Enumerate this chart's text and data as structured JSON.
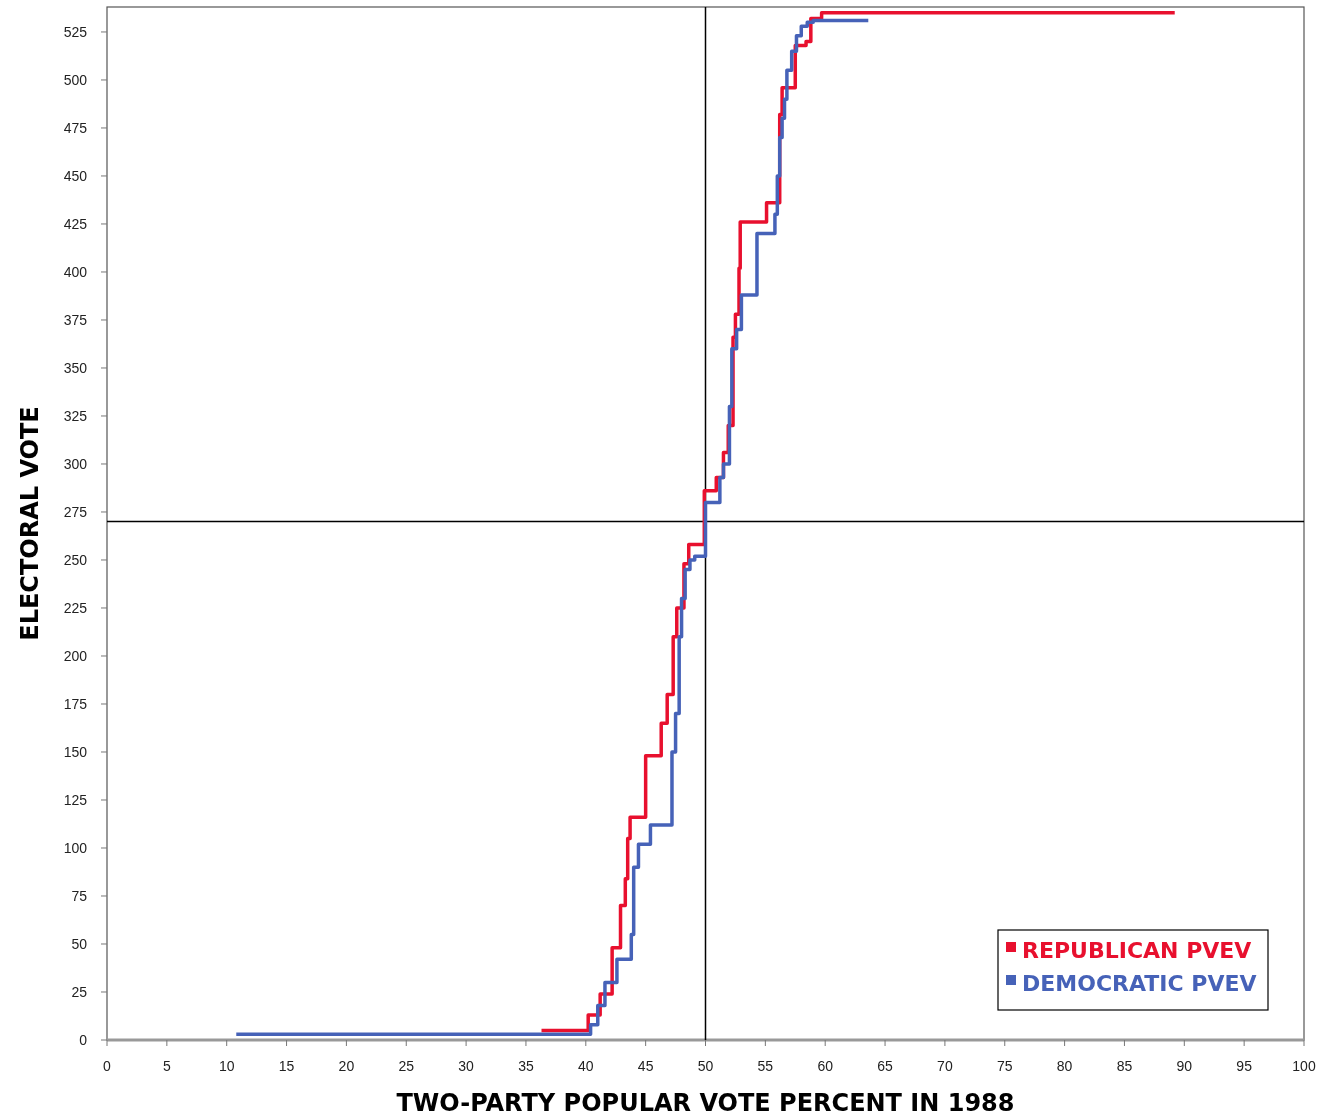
{
  "chart_data": {
    "type": "step",
    "xlabel": "TWO-PARTY POPULAR VOTE PERCENT IN 1988",
    "ylabel": "ELECTORAL VOTE",
    "xlim": [
      0,
      100
    ],
    "ylim": [
      0,
      538
    ],
    "xticks": [
      0,
      5,
      10,
      15,
      20,
      25,
      30,
      35,
      40,
      45,
      50,
      55,
      60,
      65,
      70,
      75,
      80,
      85,
      90,
      95,
      100
    ],
    "yticks": [
      0,
      25,
      50,
      75,
      100,
      125,
      150,
      175,
      200,
      225,
      250,
      275,
      300,
      325,
      350,
      375,
      400,
      425,
      450,
      475,
      500,
      525
    ],
    "grid": false,
    "legend": "bottom right",
    "marker": "none",
    "line_style": "solid",
    "ref_lines": [
      {
        "axis": "x",
        "value": 50,
        "color": "#000000"
      },
      {
        "axis": "y",
        "value": 270,
        "color": "#000000"
      }
    ],
    "series": [
      {
        "name": "REPUBLICAN PVEV",
        "color": "#e8102e",
        "x": [
          36.3,
          40.2,
          41.2,
          42.2,
          42.9,
          43.3,
          43.5,
          43.7,
          45.0,
          46.3,
          46.8,
          47.3,
          47.6,
          48.2,
          48.6,
          49.9,
          50.9,
          51.5,
          51.9,
          52.3,
          52.5,
          52.8,
          52.9,
          55.1,
          56.2,
          56.4,
          57.5,
          58.4,
          58.8,
          59.7,
          89.2
        ],
        "values": [
          5,
          13,
          24,
          48,
          70,
          84,
          105,
          116,
          148,
          165,
          180,
          210,
          225,
          248,
          258,
          286,
          293,
          306,
          320,
          366,
          378,
          402,
          426,
          436,
          482,
          496,
          518,
          520,
          532,
          535,
          535
        ]
      },
      {
        "name": "DEMOCRATIC PVEV",
        "color": "#4662b8",
        "x": [
          10.8,
          40.4,
          41.0,
          41.6,
          42.6,
          43.8,
          44.0,
          44.4,
          45.4,
          47.2,
          47.5,
          47.8,
          48.0,
          48.3,
          48.7,
          49.1,
          50.0,
          51.2,
          51.5,
          52.0,
          52.2,
          52.6,
          53.0,
          54.3,
          55.8,
          56.0,
          56.2,
          56.4,
          56.6,
          56.8,
          57.2,
          57.6,
          58.0,
          58.5,
          59.0,
          63.6
        ],
        "values": [
          3,
          8,
          18,
          30,
          42,
          55,
          90,
          102,
          112,
          150,
          170,
          210,
          230,
          245,
          250,
          252,
          280,
          293,
          300,
          330,
          360,
          370,
          388,
          420,
          430,
          450,
          470,
          480,
          490,
          505,
          515,
          523,
          528,
          530,
          531,
          531
        ]
      }
    ]
  }
}
